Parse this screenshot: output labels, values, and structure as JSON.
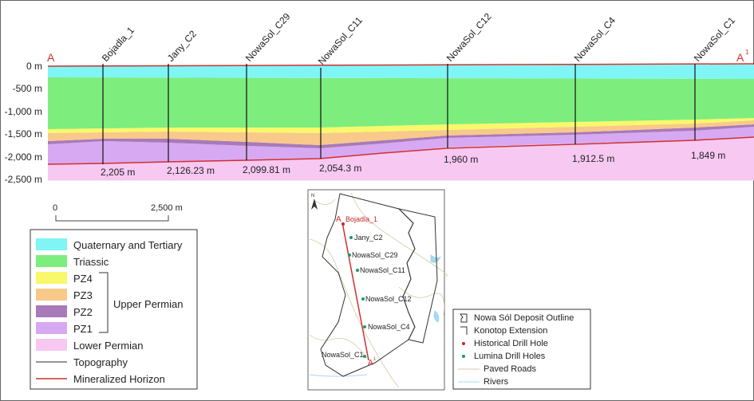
{
  "section": {
    "label_left": "A",
    "label_right": "A",
    "label_right_sup": "1",
    "depth_ticks": [
      "0 m",
      "-500 m",
      "-1,000 m",
      "-1,500 m",
      "-2,000 m",
      "-2,500 m"
    ],
    "drill_holes": [
      {
        "name": "Bojadla_1",
        "depth": "2,205 m"
      },
      {
        "name": "Jany_C2",
        "depth": "2,126.23 m"
      },
      {
        "name": "NowaSol_C29",
        "depth": "2,099.81 m"
      },
      {
        "name": "NowaSol_C11",
        "depth": "2,054.3 m"
      },
      {
        "name": "NowaSol_C12",
        "depth": "1,960 m"
      },
      {
        "name": "NowaSol_C4",
        "depth": "1,912.5 m"
      },
      {
        "name": "NowaSol_C1",
        "depth": "1,849 m"
      }
    ]
  },
  "scale_bar": {
    "start": "0",
    "end": "2,500 m"
  },
  "legend": {
    "items": [
      {
        "label": "Quaternary and Tertiary",
        "color": "#7ff5f5"
      },
      {
        "label": "Triassic",
        "color": "#7ded7d"
      },
      {
        "label": "PZ4",
        "color": "#f8f86a"
      },
      {
        "label": "PZ3",
        "color": "#f8c98a"
      },
      {
        "label": "PZ2",
        "color": "#a87ab8"
      },
      {
        "label": "PZ1",
        "color": "#d7a9f2"
      },
      {
        "label": "Lower Permian",
        "color": "#f7c8f2"
      }
    ],
    "group_label": "Upper Permian",
    "topography": "Topography",
    "mineralized": "Mineralized Horizon"
  },
  "map": {
    "north": "N",
    "start_label": "A",
    "end_label": "A",
    "end_sup": "1",
    "holes": [
      {
        "name": "Bojadla_1",
        "type": "historical"
      },
      {
        "name": "Jany_C2",
        "type": "lumina"
      },
      {
        "name": "NowaSol_C29",
        "type": "lumina"
      },
      {
        "name": "NowaSol_C11",
        "type": "lumina"
      },
      {
        "name": "NowaSol_C12",
        "type": "lumina"
      },
      {
        "name": "NowaSol_C4",
        "type": "lumina"
      },
      {
        "name": "NowaSol_C1",
        "type": "lumina"
      }
    ]
  },
  "map_legend": {
    "outline": "Nowa Sól Deposit Outline",
    "extension": "Konotop Extension",
    "historical": "Historical Drill Hole",
    "lumina": "Lumina Drill Holes",
    "roads": "Paved Roads",
    "rivers": "Rivers"
  },
  "colors": {
    "quaternary": "#7ff5f5",
    "triassic": "#7ded7d",
    "pz4": "#f8f86a",
    "pz3": "#f8c98a",
    "pz2": "#a87ab8",
    "pz1": "#d7a9f2",
    "lower_permian": "#f7c8f2",
    "mineralized": "#d03030",
    "historical": "#c8282e",
    "lumina": "#1a9a6a",
    "road": "#d8c9a8",
    "river": "#a6d8ee"
  }
}
